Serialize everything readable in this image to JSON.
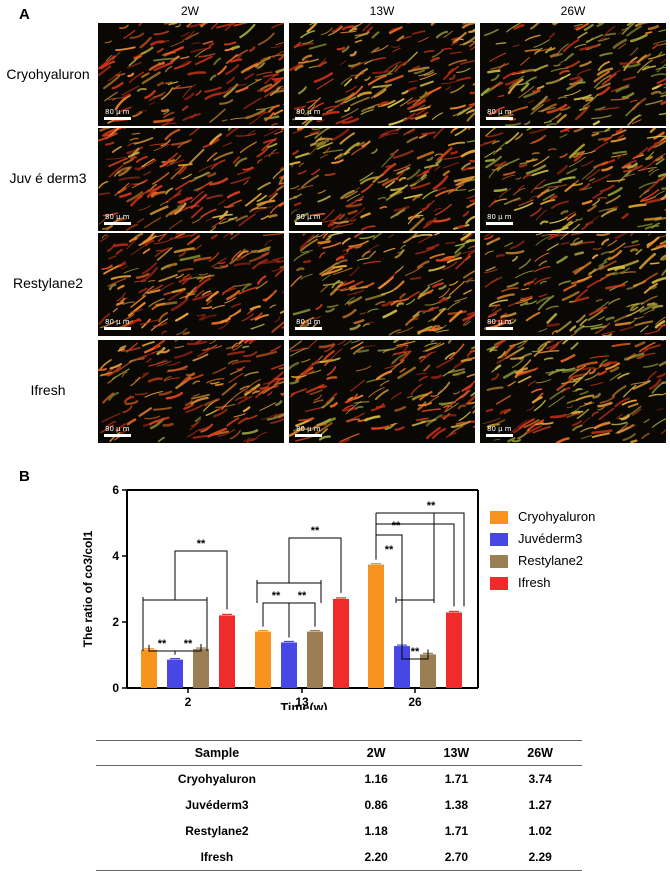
{
  "panel_a": {
    "letter": "A",
    "columns": [
      "2W",
      "13W",
      "26W"
    ],
    "rows": [
      "Cryohyaluron",
      "Juv é derm3",
      "Restylane2",
      "Ifresh"
    ],
    "scale_label": "80 μ m"
  },
  "panel_b": {
    "letter": "B",
    "legend": [
      {
        "name": "Cryohyaluron",
        "color": "#f7931e"
      },
      {
        "name": "Juvéderm3",
        "color": "#4747e6"
      },
      {
        "name": "Restylane2",
        "color": "#9c7e55"
      },
      {
        "name": "Ifresh",
        "color": "#ef2b2b"
      }
    ]
  },
  "chart_data": {
    "type": "bar",
    "xlabel": "Time(w)",
    "ylabel": "The ratio of co3/col1",
    "ylim": [
      0,
      6
    ],
    "yticks": [
      "0",
      "2",
      "4",
      "6"
    ],
    "categories": [
      "2",
      "13",
      "26"
    ],
    "series": [
      {
        "name": "Cryohyaluron",
        "values": [
          1.16,
          1.71,
          3.74
        ]
      },
      {
        "name": "Juvéderm3",
        "values": [
          0.86,
          1.38,
          1.27
        ]
      },
      {
        "name": "Restylane2",
        "values": [
          1.18,
          1.71,
          1.02
        ]
      },
      {
        "name": "Ifresh",
        "values": [
          2.2,
          2.7,
          2.29
        ]
      }
    ],
    "significance_label": "**"
  },
  "table": {
    "headers": [
      "Sample",
      "2W",
      "13W",
      "26W"
    ],
    "rows": [
      [
        "Cryohyaluron",
        "1.16",
        "1.71",
        "3.74"
      ],
      [
        "Juvéderm3",
        "0.86",
        "1.38",
        "1.27"
      ],
      [
        "Restylane2",
        "1.18",
        "1.71",
        "1.02"
      ],
      [
        "Ifresh",
        "2.20",
        "2.70",
        "2.29"
      ]
    ]
  }
}
